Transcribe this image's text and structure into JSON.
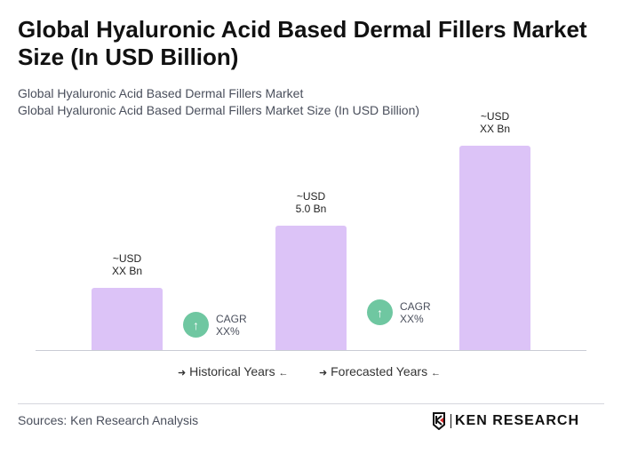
{
  "title": "Global Hyaluronic Acid Based Dermal Fillers Market Size (In USD Billion)",
  "subtitle_1": "Global Hyaluronic Acid Based Dermal Fillers Market",
  "subtitle_2": "Global Hyaluronic Acid Based Dermal Fillers Market Size (In USD Billion)",
  "chart_data": {
    "type": "bar",
    "categories": [
      "",
      "",
      ""
    ],
    "values": [
      2.5,
      5.0,
      8.2
    ],
    "data_labels": [
      {
        "line1": "~USD",
        "line2": "XX Bn"
      },
      {
        "line1": "~USD",
        "line2": "5.0 Bn"
      },
      {
        "line1": "~USD",
        "line2": "XX Bn"
      }
    ],
    "bar_color": "#dcc3f7",
    "grid": false,
    "annotations": [
      {
        "line1": "CAGR",
        "line2": "XX%",
        "icon": "arrow-up-icon",
        "color": "#6fc7a1"
      },
      {
        "line1": "CAGR",
        "line2": "XX%",
        "icon": "arrow-up-icon",
        "color": "#6fc7a1"
      }
    ],
    "legend": [
      "Historical Years",
      "Forecasted Years"
    ],
    "legend_placement": "bottom"
  },
  "footer": {
    "sources": "Sources: Ken Research Analysis",
    "logo": "KEN RESEARCH"
  }
}
